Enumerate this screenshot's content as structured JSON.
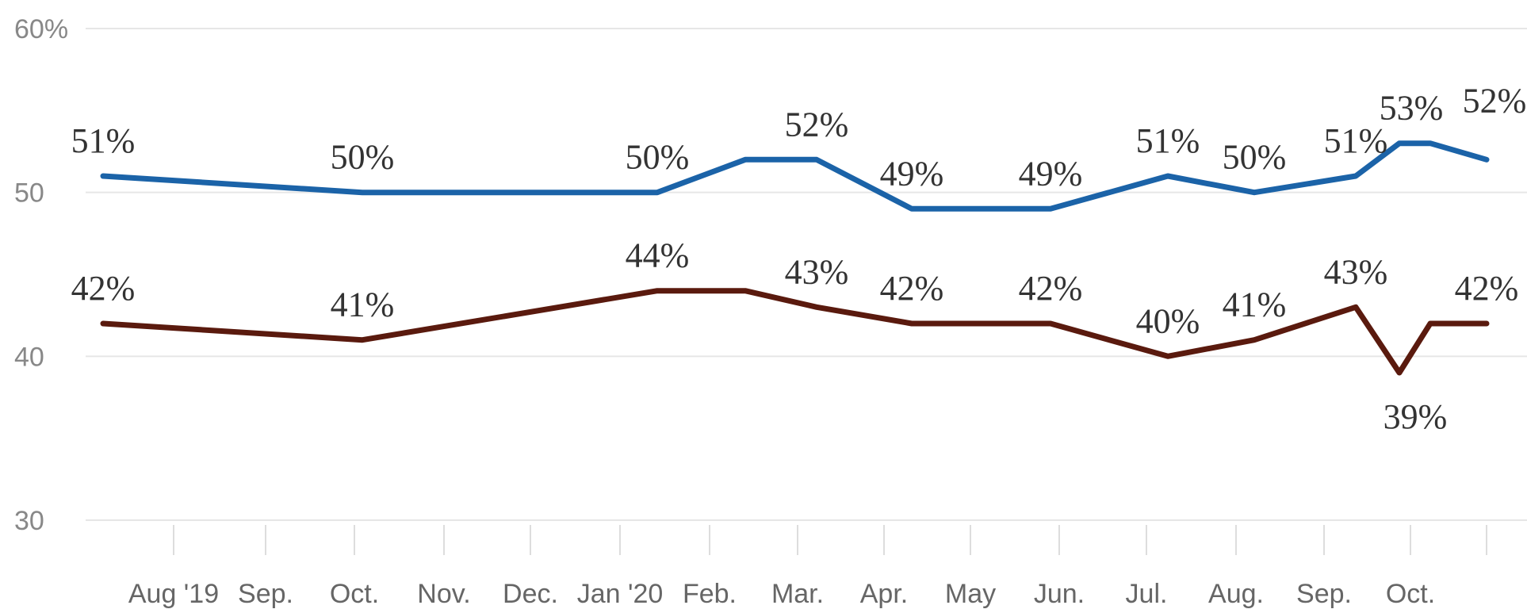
{
  "chart_data": {
    "type": "line",
    "title": "",
    "xlabel": "",
    "ylabel": "",
    "ylim": [
      30,
      60
    ],
    "y_ticks": [
      {
        "value": 60,
        "label": "60%"
      },
      {
        "value": 50,
        "label": "50"
      },
      {
        "value": 40,
        "label": "40"
      },
      {
        "value": 30,
        "label": "30"
      }
    ],
    "x_ticks": [
      "Aug '19",
      "Sep.",
      "Oct.",
      "Nov.",
      "Dec.",
      "Jan '20",
      "Feb.",
      "Mar.",
      "Apr.",
      "May",
      "Jun.",
      "Jul.",
      "Aug.",
      "Sep.",
      "Oct."
    ],
    "grid": true,
    "legend": "none",
    "series": [
      {
        "color": "#1b63a8",
        "points": [
          {
            "date": "2019-07",
            "value": 51,
            "label": "51%"
          },
          {
            "date": "2019-10",
            "value": 50,
            "label": "50%"
          },
          {
            "date": "2020-01",
            "value": 50,
            "label": "50%"
          },
          {
            "date": "2020-02",
            "value": 52,
            "label": ""
          },
          {
            "date": "2020-03",
            "value": 52,
            "label": "52%"
          },
          {
            "date": "2020-04",
            "value": 49,
            "label": "49%"
          },
          {
            "date": "2020-06",
            "value": 49,
            "label": "49%"
          },
          {
            "date": "2020-07",
            "value": 51,
            "label": "51%"
          },
          {
            "date": "2020-08",
            "value": 50,
            "label": "50%"
          },
          {
            "date": "2020-09",
            "value": 51,
            "label": "51%"
          },
          {
            "date": "2020-10",
            "value": 53,
            "label": "53%"
          },
          {
            "date": "2020-10",
            "value": 53,
            "label": ""
          },
          {
            "date": "2020-11",
            "value": 52,
            "label": "52%"
          }
        ]
      },
      {
        "color": "#5a1a0e",
        "points": [
          {
            "date": "2019-07",
            "value": 42,
            "label": "42%"
          },
          {
            "date": "2019-10",
            "value": 41,
            "label": "41%"
          },
          {
            "date": "2020-01",
            "value": 44,
            "label": "44%"
          },
          {
            "date": "2020-02",
            "value": 44,
            "label": ""
          },
          {
            "date": "2020-03",
            "value": 43,
            "label": "43%"
          },
          {
            "date": "2020-04",
            "value": 42,
            "label": "42%"
          },
          {
            "date": "2020-06",
            "value": 42,
            "label": "42%"
          },
          {
            "date": "2020-07",
            "value": 40,
            "label": "40%"
          },
          {
            "date": "2020-08",
            "value": 41,
            "label": "41%"
          },
          {
            "date": "2020-09",
            "value": 43,
            "label": "43%"
          },
          {
            "date": "2020-10",
            "value": 39,
            "label": "39%"
          },
          {
            "date": "2020-10",
            "value": 42,
            "label": ""
          },
          {
            "date": "2020-11",
            "value": 42,
            "label": "42%"
          }
        ]
      }
    ]
  }
}
